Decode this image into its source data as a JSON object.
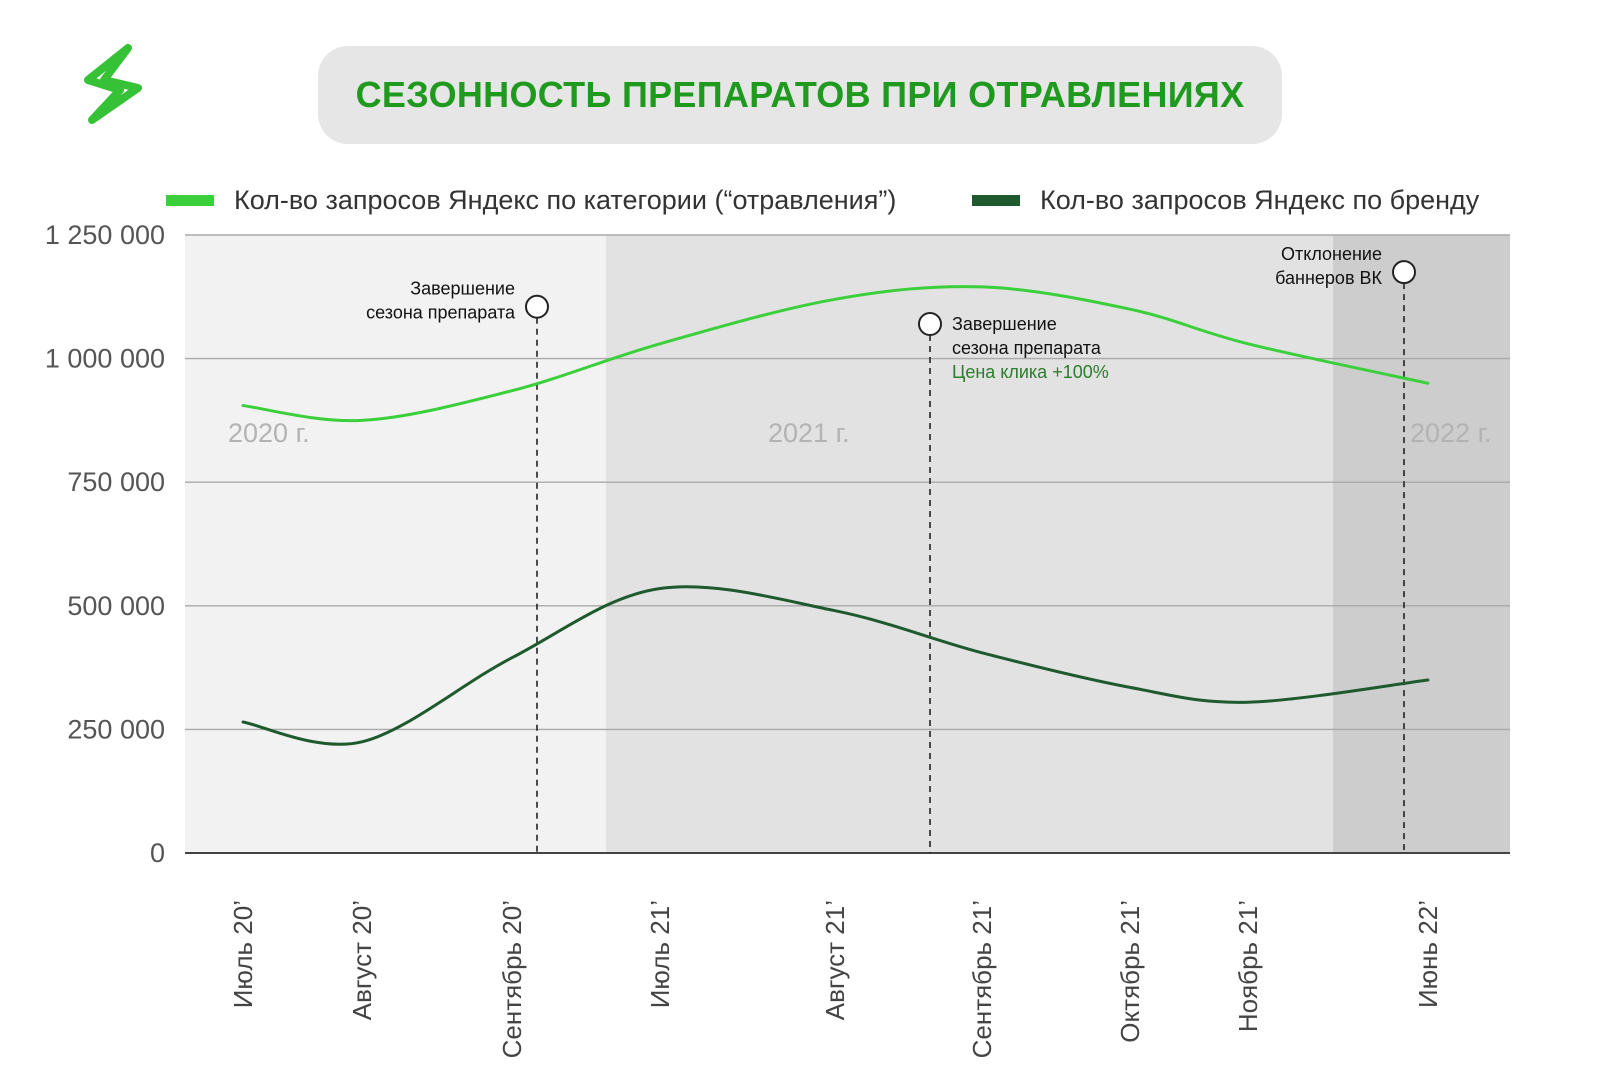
{
  "colors": {
    "category_line": "#3ccf3c",
    "brand_line": "#1e5a2e",
    "title_text": "#1f9a1f",
    "title_box": "#e6e6e6",
    "band_2020": "#f2f2f2",
    "band_2021": "#e2e2e2",
    "band_2022": "#cdcdcd",
    "annotation_green": "#2a7d2a"
  },
  "chart_data": {
    "type": "line",
    "title": "СЕЗОННОСТЬ ПРЕПАРАТОВ ПРИ ОТРАВЛЕНИЯХ",
    "categories": [
      "Июль 20’",
      "Август 20’",
      "Сентябрь 20’",
      "Июль 21’",
      "Август 21’",
      "Сентябрь 21’",
      "Октябрь 21’",
      "Ноябрь 21’",
      "Июнь 22’"
    ],
    "series": [
      {
        "name": "Кол-во запросов Яндекс по категории (“отравления”)",
        "color": "#3ccf3c",
        "values": [
          905000,
          875000,
          935000,
          1030000,
          1120000,
          1145000,
          1100000,
          1030000,
          950000
        ]
      },
      {
        "name": "Кол-во запросов Яндекс по бренду",
        "color": "#1e5a2e",
        "values": [
          265000,
          225000,
          395000,
          535000,
          490000,
          405000,
          335000,
          305000,
          350000
        ]
      }
    ],
    "yticks": [
      0,
      250000,
      500000,
      750000,
      1000000,
      1250000
    ],
    "ytick_labels": [
      "0",
      "250 000",
      "500 000",
      "750 000",
      "1 000 000",
      "1 250 000"
    ],
    "ylim": [
      0,
      1250000
    ],
    "grid": true,
    "legend_position": "top",
    "period_bands": [
      {
        "label": "2020 г."
      },
      {
        "label": "2021 г."
      },
      {
        "label": "2022 г."
      }
    ],
    "annotations": [
      {
        "lines": [
          "Завершение",
          "сезона препарата"
        ],
        "value": 1105000
      },
      {
        "lines": [
          "Завершение",
          "сезона препарата"
        ],
        "extra": "Цена клика +100%",
        "value": 1070000
      },
      {
        "lines": [
          "Отклонение",
          "баннеров ВК"
        ],
        "value": 1175000
      }
    ]
  }
}
